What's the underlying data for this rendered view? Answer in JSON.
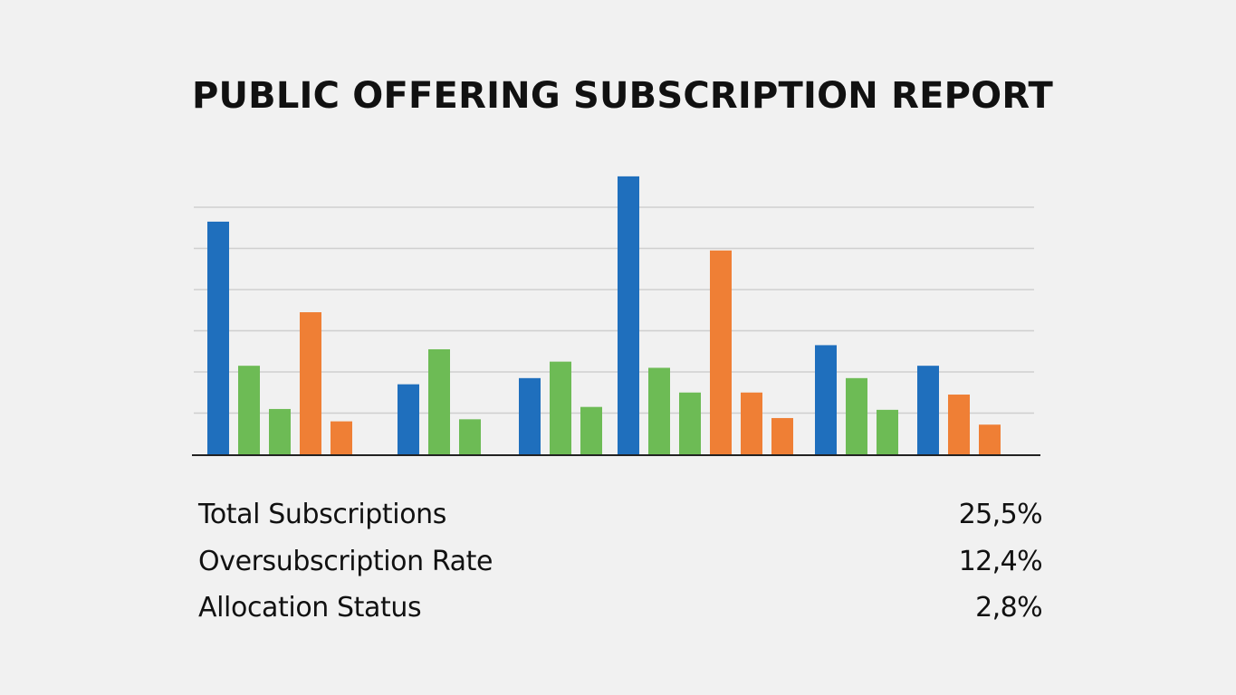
{
  "title": "PUBLIC OFFERING SUBSCRIPTION REPORT",
  "colors": {
    "background": "#f1f1f1",
    "blue": "#1f6fbd",
    "green": "#6dbb55",
    "orange": "#ef7f35",
    "grid": "#cfcfcf",
    "axis": "#222222"
  },
  "chart_data": {
    "type": "bar",
    "ylim": [
      0,
      7
    ],
    "grid": true,
    "xlabel": "",
    "ylabel": "",
    "groups": [
      {
        "bars": [
          {
            "color": "blue",
            "value": 5.65
          },
          {
            "color": "green",
            "value": 2.15
          },
          {
            "color": "green",
            "value": 1.1
          },
          {
            "color": "orange",
            "value": 3.45
          },
          {
            "color": "orange",
            "value": 0.8
          }
        ]
      },
      {
        "bars": [
          {
            "color": "blue",
            "value": 1.7
          },
          {
            "color": "green",
            "value": 2.55
          },
          {
            "color": "green",
            "value": 0.85
          }
        ]
      },
      {
        "bars": [
          {
            "color": "blue",
            "value": 1.85
          },
          {
            "color": "green",
            "value": 2.25
          },
          {
            "color": "green",
            "value": 1.15
          }
        ]
      },
      {
        "bars": [
          {
            "color": "blue",
            "value": 6.75
          },
          {
            "color": "green",
            "value": 2.1
          },
          {
            "color": "green",
            "value": 1.5
          },
          {
            "color": "orange",
            "value": 4.95
          },
          {
            "color": "orange",
            "value": 1.5
          },
          {
            "color": "orange",
            "value": 0.88
          }
        ]
      },
      {
        "bars": [
          {
            "color": "blue",
            "value": 2.65
          },
          {
            "color": "green",
            "value": 1.85
          },
          {
            "color": "green",
            "value": 1.08
          }
        ]
      },
      {
        "bars": [
          {
            "color": "blue",
            "value": 2.15
          },
          {
            "color": "orange",
            "value": 1.45
          },
          {
            "color": "orange",
            "value": 0.72
          }
        ]
      }
    ]
  },
  "metrics": [
    {
      "label": "Total Subscriptions",
      "value": "25,5%"
    },
    {
      "label": "Oversubscription Rate",
      "value": "12,4%"
    },
    {
      "label": "Allocation Status",
      "value": "2,8%"
    }
  ]
}
